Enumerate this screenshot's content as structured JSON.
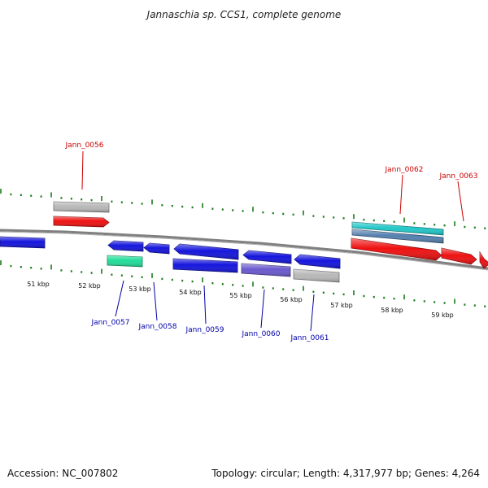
{
  "title": "Jannaschia sp. CCS1, complete genome",
  "footer": {
    "accession": "Accession: NC_007802",
    "summary": "Topology: circular; Length: 4,317,977 bp; Genes: 4,264"
  },
  "colors": {
    "forward_label": "#cc0000",
    "reverse_label": "#0000aa",
    "backbone": "#808080",
    "tick": "#1a7a1a"
  },
  "ruler": {
    "labels": [
      "51 kbp",
      "52 kbp",
      "53 kbp",
      "54 kbp",
      "55 kbp",
      "56 kbp",
      "57 kbp",
      "58 kbp",
      "59 kbp"
    ]
  },
  "genes": [
    {
      "id": "fwd-gray-1",
      "strand": "+",
      "color": "#b8b8b8"
    },
    {
      "id": "fwd-red-1",
      "strand": "+",
      "color": "#ee1111"
    },
    {
      "id": "fwd-cyan",
      "strand": "+",
      "color": "#22c8c8"
    },
    {
      "id": "fwd-steel",
      "strand": "+",
      "color": "#5580b0"
    },
    {
      "id": "fwd-red-2",
      "strand": "+",
      "color": "#ee1111"
    },
    {
      "id": "fwd-red-3",
      "strand": "+",
      "color": "#ee1111"
    },
    {
      "id": "fwd-red-4",
      "strand": "+",
      "color": "#ee1111"
    },
    {
      "id": "rev-blue-0",
      "strand": "-",
      "color": "#1515dd"
    },
    {
      "id": "rev-blue-1",
      "strand": "-",
      "color": "#1515dd"
    },
    {
      "id": "rev-blue-2",
      "strand": "-",
      "color": "#1515dd"
    },
    {
      "id": "rev-green",
      "strand": "-",
      "color": "#22dd99"
    },
    {
      "id": "rev-blue-3",
      "strand": "-",
      "color": "#1515dd"
    },
    {
      "id": "rev-blue-4",
      "strand": "-",
      "color": "#1515dd"
    },
    {
      "id": "rev-blue-5",
      "strand": "-",
      "color": "#1515dd"
    },
    {
      "id": "rev-purple",
      "strand": "-",
      "color": "#6a5acd"
    },
    {
      "id": "rev-blue-6",
      "strand": "-",
      "color": "#1515dd"
    },
    {
      "id": "rev-gray",
      "strand": "-",
      "color": "#b8b8b8"
    }
  ],
  "labels": [
    {
      "text": "Jann_0056",
      "strand": "+"
    },
    {
      "text": "Jann_0062",
      "strand": "+"
    },
    {
      "text": "Jann_0063",
      "strand": "+"
    },
    {
      "text": "Jann_0057",
      "strand": "-"
    },
    {
      "text": "Jann_0058",
      "strand": "-"
    },
    {
      "text": "Jann_0059",
      "strand": "-"
    },
    {
      "text": "Jann_0060",
      "strand": "-"
    },
    {
      "text": "Jann_0061",
      "strand": "-"
    }
  ]
}
